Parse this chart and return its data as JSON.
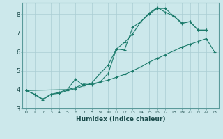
{
  "xlabel": "Humidex (Indice chaleur)",
  "bg_color": "#cce8eb",
  "grid_color": "#aacdd4",
  "line_color": "#1a7a6a",
  "xlim": [
    -0.5,
    23.5
  ],
  "ylim": [
    3.0,
    8.6
  ],
  "yticks": [
    3,
    4,
    5,
    6,
    7,
    8
  ],
  "xticks": [
    0,
    1,
    2,
    3,
    4,
    5,
    6,
    7,
    8,
    9,
    10,
    11,
    12,
    13,
    14,
    15,
    16,
    17,
    18,
    19,
    20,
    21,
    22,
    23
  ],
  "line1_x": [
    0,
    1,
    2,
    3,
    4,
    5,
    6,
    7,
    8,
    9,
    10,
    11,
    12,
    13,
    14,
    15,
    16,
    17,
    18,
    19,
    20,
    21,
    22,
    23
  ],
  "line1_y": [
    3.95,
    3.75,
    3.45,
    3.75,
    3.8,
    3.95,
    4.05,
    4.2,
    4.3,
    4.4,
    4.5,
    4.65,
    4.8,
    5.0,
    5.2,
    5.45,
    5.65,
    5.85,
    6.05,
    6.25,
    6.4,
    6.55,
    6.7,
    6.0
  ],
  "line2_x": [
    0,
    1,
    2,
    3,
    4,
    5,
    6,
    7,
    8,
    9,
    10,
    11,
    12,
    13,
    14,
    15,
    16,
    17,
    18,
    19,
    20,
    21,
    22
  ],
  "line2_y": [
    3.95,
    3.75,
    3.5,
    3.75,
    3.85,
    4.0,
    4.1,
    4.3,
    4.25,
    4.4,
    4.85,
    6.15,
    6.5,
    6.95,
    7.6,
    8.0,
    8.3,
    8.3,
    7.9,
    7.55,
    7.6,
    7.15,
    7.15
  ],
  "line3_x": [
    0,
    5,
    6,
    7,
    8,
    9,
    10,
    11,
    12,
    13,
    14,
    15,
    16,
    17,
    18,
    19,
    20,
    21,
    22
  ],
  "line3_y": [
    3.95,
    4.0,
    4.55,
    4.2,
    4.35,
    4.85,
    5.3,
    6.15,
    6.1,
    7.3,
    7.6,
    8.05,
    8.35,
    8.1,
    7.9,
    7.5,
    7.6,
    7.15,
    7.15
  ]
}
